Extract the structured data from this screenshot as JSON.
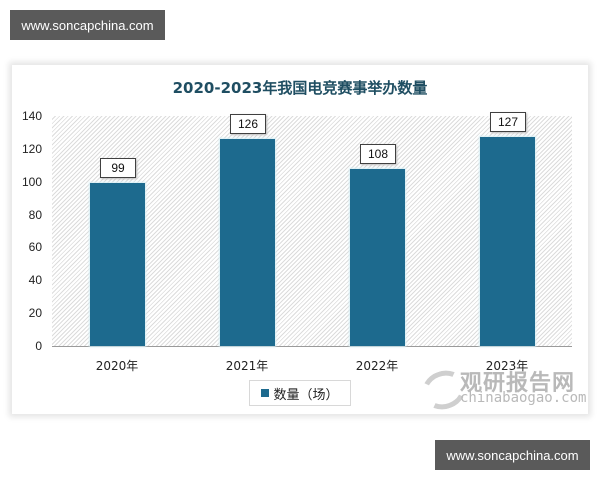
{
  "watermark": {
    "top": "www.soncapchina.com",
    "bottom": "www.soncapchina.com"
  },
  "logo": {
    "name": "观研报告网",
    "url_text": "chinabaogao.com"
  },
  "chart_data": {
    "type": "bar",
    "title": "2020-2023年我国电竞赛事举办数量",
    "categories": [
      "2020年",
      "2021年",
      "2022年",
      "2023年"
    ],
    "values": [
      99,
      126,
      108,
      127
    ],
    "series": [
      {
        "name": "数量（场）",
        "values": [
          99,
          126,
          108,
          127
        ],
        "color": "#1d6a8e"
      }
    ],
    "xlabel": "",
    "ylabel": "",
    "ylim": [
      0,
      140
    ],
    "yticks": [
      "140",
      "120",
      "100",
      "80",
      "60",
      "40",
      "20",
      "0"
    ],
    "data_labels": [
      "99",
      "126",
      "108",
      "127"
    ],
    "legend_position": "bottom",
    "grid": false,
    "background": "diagonal hatch"
  }
}
